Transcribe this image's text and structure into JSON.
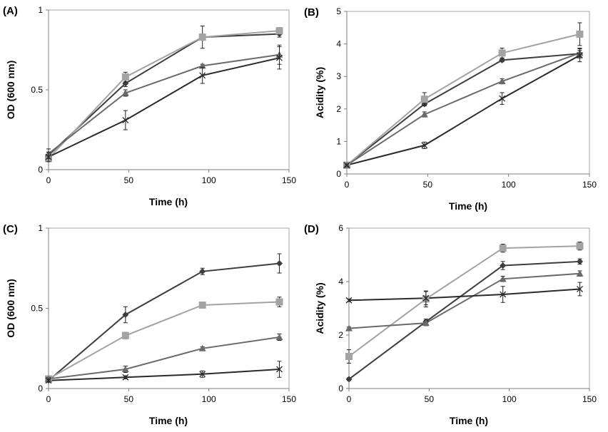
{
  "colors": {
    "diamond": "#3d3d3d",
    "square": "#a3a3a3",
    "triangle": "#6a6a6a",
    "cross": "#2a2a2a"
  },
  "chart_data": [
    {
      "panel": "(A)",
      "type": "line",
      "xlabel": "Time (h)",
      "ylabel": "OD (600 nm)",
      "xlim": [
        0,
        150
      ],
      "ylim": [
        0,
        1
      ],
      "xticks": [
        "0",
        "50",
        "100",
        "150"
      ],
      "yticks": [
        "0",
        "0.5",
        "1"
      ],
      "x": [
        0,
        48,
        96,
        144
      ],
      "series": [
        {
          "marker": "diamond",
          "color": "diamond",
          "values": [
            0.09,
            0.54,
            0.83,
            0.85
          ],
          "errors": [
            0.02,
            0.02,
            0.02,
            0.02
          ]
        },
        {
          "marker": "square",
          "color": "square",
          "values": [
            0.07,
            0.58,
            0.83,
            0.87
          ],
          "errors": [
            0.02,
            0.03,
            0.07,
            0.01
          ]
        },
        {
          "marker": "triangle",
          "color": "triangle",
          "values": [
            0.1,
            0.48,
            0.65,
            0.72
          ],
          "errors": [
            0.03,
            0.02,
            0.01,
            0.06
          ]
        },
        {
          "marker": "cross",
          "color": "cross",
          "values": [
            0.08,
            0.31,
            0.59,
            0.7
          ],
          "errors": [
            0.03,
            0.06,
            0.05,
            0.07
          ]
        }
      ]
    },
    {
      "panel": "(B)",
      "type": "line",
      "xlabel": "Time (h)",
      "ylabel": "Acidity (%)",
      "xlim": [
        0,
        150
      ],
      "ylim": [
        0,
        5
      ],
      "xticks": [
        "0",
        "50",
        "100",
        "150"
      ],
      "yticks": [
        "0",
        "1",
        "2",
        "3",
        "4",
        "5"
      ],
      "x": [
        0,
        48,
        96,
        144
      ],
      "series": [
        {
          "marker": "diamond",
          "color": "diamond",
          "values": [
            0.27,
            2.15,
            3.5,
            3.7
          ],
          "errors": [
            0.03,
            0.05,
            0.05,
            0.1
          ]
        },
        {
          "marker": "square",
          "color": "square",
          "values": [
            0.27,
            2.3,
            3.72,
            4.3
          ],
          "errors": [
            0.03,
            0.2,
            0.15,
            0.35
          ]
        },
        {
          "marker": "triangle",
          "color": "triangle",
          "values": [
            0.27,
            1.83,
            2.85,
            3.72
          ],
          "errors": [
            0.03,
            0.08,
            0.08,
            0.15
          ]
        },
        {
          "marker": "cross",
          "color": "cross",
          "values": [
            0.27,
            0.88,
            2.32,
            3.65
          ],
          "errors": [
            0.03,
            0.1,
            0.18,
            0.2
          ]
        }
      ]
    },
    {
      "panel": "(C)",
      "type": "line",
      "xlabel": "Time (h)",
      "ylabel": "OD (600 nm)",
      "xlim": [
        0,
        150
      ],
      "ylim": [
        0,
        1
      ],
      "xticks": [
        "0",
        "50",
        "100",
        "150"
      ],
      "yticks": [
        "0",
        "0.5",
        "1"
      ],
      "x": [
        0,
        48,
        96,
        144
      ],
      "series": [
        {
          "marker": "diamond",
          "color": "diamond",
          "values": [
            0.05,
            0.46,
            0.73,
            0.78
          ],
          "errors": [
            0.01,
            0.05,
            0.02,
            0.06
          ]
        },
        {
          "marker": "square",
          "color": "square",
          "values": [
            0.06,
            0.33,
            0.52,
            0.54
          ],
          "errors": [
            0.01,
            0.02,
            0.01,
            0.03
          ]
        },
        {
          "marker": "triangle",
          "color": "triangle",
          "values": [
            0.06,
            0.12,
            0.25,
            0.32
          ],
          "errors": [
            0.01,
            0.02,
            0.01,
            0.02
          ]
        },
        {
          "marker": "cross",
          "color": "cross",
          "values": [
            0.05,
            0.07,
            0.09,
            0.12
          ],
          "errors": [
            0.01,
            0.01,
            0.02,
            0.05
          ]
        }
      ]
    },
    {
      "panel": "(D)",
      "type": "line",
      "xlabel": "Time (h)",
      "ylabel": "Acidity (%)",
      "xlim": [
        0,
        150
      ],
      "ylim": [
        0,
        6
      ],
      "xticks": [
        "0",
        "50",
        "100",
        "150"
      ],
      "yticks": [
        "0",
        "2",
        "4",
        "6"
      ],
      "x": [
        0,
        48,
        96,
        144
      ],
      "series": [
        {
          "marker": "diamond",
          "color": "diamond",
          "values": [
            0.35,
            2.5,
            4.6,
            4.75
          ],
          "errors": [
            0.05,
            0.1,
            0.15,
            0.1
          ]
        },
        {
          "marker": "square",
          "color": "square",
          "values": [
            1.2,
            3.35,
            5.25,
            5.33
          ],
          "errors": [
            0.25,
            0.3,
            0.15,
            0.15
          ]
        },
        {
          "marker": "triangle",
          "color": "triangle",
          "values": [
            2.25,
            2.45,
            4.1,
            4.3
          ],
          "errors": [
            0.05,
            0.1,
            0.1,
            0.1
          ]
        },
        {
          "marker": "cross",
          "color": "cross",
          "values": [
            3.3,
            3.38,
            3.52,
            3.72
          ],
          "errors": [
            0.05,
            0.25,
            0.3,
            0.25
          ]
        }
      ]
    }
  ]
}
